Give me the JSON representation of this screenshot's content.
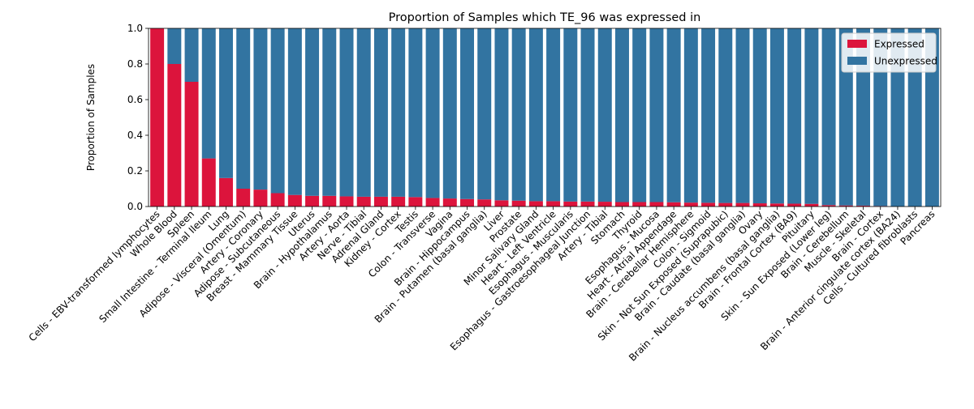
{
  "chart_data": {
    "type": "bar",
    "stacked": true,
    "title": "Proportion of Samples which TE_96 was expressed in",
    "xlabel": "",
    "ylabel": "Proportion of Samples",
    "ylim": [
      0,
      1
    ],
    "yticks": [
      "0.0",
      "0.2",
      "0.4",
      "0.6",
      "0.8",
      "1.0"
    ],
    "legend_position": "top-right",
    "grid": false,
    "categories": [
      "Cells - EBV-transformed lymphocytes",
      "Whole Blood",
      "Spleen",
      "Small Intestine - Terminal Ileum",
      "Lung",
      "Adipose - Visceral (Omentum)",
      "Artery - Coronary",
      "Adipose - Subcutaneous",
      "Breast - Mammary Tissue",
      "Uterus",
      "Brain - Hypothalamus",
      "Artery - Aorta",
      "Nerve - Tibial",
      "Adrenal Gland",
      "Kidney - Cortex",
      "Testis",
      "Colon - Transverse",
      "Vagina",
      "Brain - Hippocampus",
      "Brain - Putamen (basal ganglia)",
      "Liver",
      "Prostate",
      "Minor Salivary Gland",
      "Heart - Left Ventricle",
      "Esophagus - Muscularis",
      "Esophagus - Gastroesophageal Junction",
      "Artery - Tibial",
      "Stomach",
      "Thyroid",
      "Esophagus - Mucosa",
      "Heart - Atrial Appendage",
      "Brain - Cerebellar Hemisphere",
      "Colon - Sigmoid",
      "Skin - Not Sun Exposed (Suprapubic)",
      "Brain - Caudate (basal ganglia)",
      "Ovary",
      "Brain - Nucleus accumbens (basal ganglia)",
      "Brain - Frontal Cortex (BA9)",
      "Pituitary",
      "Skin - Sun Exposed (Lower leg)",
      "Brain - Cerebellum",
      "Muscle - Skeletal",
      "Brain - Cortex",
      "Brain - Anterior cingulate cortex (BA24)",
      "Cells - Cultured fibroblasts",
      "Pancreas"
    ],
    "series": [
      {
        "name": "Expressed",
        "color": "#dc143c",
        "values": [
          1.0,
          0.8,
          0.7,
          0.27,
          0.16,
          0.1,
          0.095,
          0.075,
          0.065,
          0.06,
          0.06,
          0.057,
          0.055,
          0.055,
          0.055,
          0.053,
          0.048,
          0.045,
          0.042,
          0.04,
          0.035,
          0.033,
          0.03,
          0.03,
          0.028,
          0.028,
          0.027,
          0.025,
          0.025,
          0.025,
          0.024,
          0.022,
          0.021,
          0.02,
          0.02,
          0.018,
          0.017,
          0.016,
          0.015,
          0.008,
          0.006,
          0.005,
          0.003,
          0.0,
          0.0,
          0.0
        ]
      },
      {
        "name": "Unexpressed",
        "color": "#3274a1",
        "values": [
          0.0,
          0.2,
          0.3,
          0.73,
          0.84,
          0.9,
          0.905,
          0.925,
          0.935,
          0.94,
          0.94,
          0.943,
          0.945,
          0.945,
          0.945,
          0.947,
          0.952,
          0.955,
          0.958,
          0.96,
          0.965,
          0.967,
          0.97,
          0.97,
          0.972,
          0.972,
          0.973,
          0.975,
          0.975,
          0.975,
          0.976,
          0.978,
          0.979,
          0.98,
          0.98,
          0.982,
          0.983,
          0.984,
          0.985,
          0.992,
          0.994,
          0.995,
          0.997,
          1.0,
          1.0,
          1.0
        ]
      }
    ]
  }
}
